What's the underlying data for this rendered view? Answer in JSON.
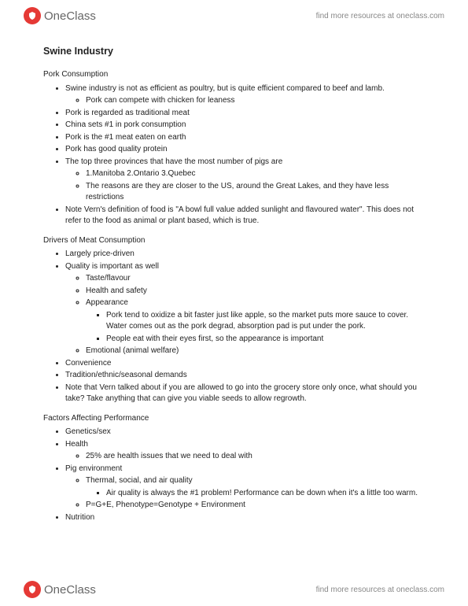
{
  "brand": {
    "name": "OneClass",
    "link_text": "find more resources at oneclass.com"
  },
  "doc": {
    "title": "Swine Industry",
    "sections": [
      {
        "heading": "Pork Consumption",
        "items": [
          {
            "t": "Swine industry is not as efficient as poultry, but is quite efficient compared to beef and lamb.",
            "sub": [
              {
                "t": "Pork can compete with chicken for leaness"
              }
            ]
          },
          {
            "t": "Pork is regarded as traditional meat"
          },
          {
            "t": "China sets #1 in pork consumption"
          },
          {
            "t": "Pork is the #1 meat eaten on earth"
          },
          {
            "t": "Pork has good quality protein"
          },
          {
            "t": "The top three provinces that have the most number of pigs are",
            "sub": [
              {
                "t": "1.Manitoba 2.Ontario 3.Quebec"
              },
              {
                "t": "The reasons are they are closer to the US, around the Great Lakes, and they have less restrictions"
              }
            ]
          },
          {
            "t": "Note Vern's definition of food is \"A bowl full value added sunlight and flavoured water\". This does not refer to the food as animal or plant based, which is true."
          }
        ]
      },
      {
        "heading": "Drivers of Meat Consumption",
        "items": [
          {
            "t": "Largely price-driven"
          },
          {
            "t": "Quality is important as well",
            "sub": [
              {
                "t": "Taste/flavour"
              },
              {
                "t": "Health and safety"
              },
              {
                "t": "Appearance",
                "sub": [
                  {
                    "t": "Pork tend to oxidize a bit faster just like apple, so the market puts more sauce to cover. Water comes out as the pork degrad, absorption pad is put under the pork."
                  },
                  {
                    "t": "People eat with their eyes first, so the appearance is important"
                  }
                ]
              },
              {
                "t": "Emotional (animal welfare)"
              }
            ]
          },
          {
            "t": "Convenience"
          },
          {
            "t": "Tradition/ethnic/seasonal demands"
          },
          {
            "t": "Note that Vern talked about if you are allowed to go into the grocery store only once, what should you take? Take anything that can give you viable seeds to allow regrowth."
          }
        ]
      },
      {
        "heading": "Factors Affecting Performance",
        "items": [
          {
            "t": "Genetics/sex"
          },
          {
            "t": "Health",
            "sub": [
              {
                "t": "25% are health issues that we need to deal with"
              }
            ]
          },
          {
            "t": "Pig environment",
            "sub": [
              {
                "t": "Thermal, social, and air quality",
                "sub": [
                  {
                    "t": "Air quality is always the #1 problem! Performance can be down when it's a little too warm."
                  }
                ]
              },
              {
                "t": "P=G+E, Phenotype=Genotype + Environment"
              }
            ]
          },
          {
            "t": "Nutrition"
          }
        ]
      }
    ]
  }
}
